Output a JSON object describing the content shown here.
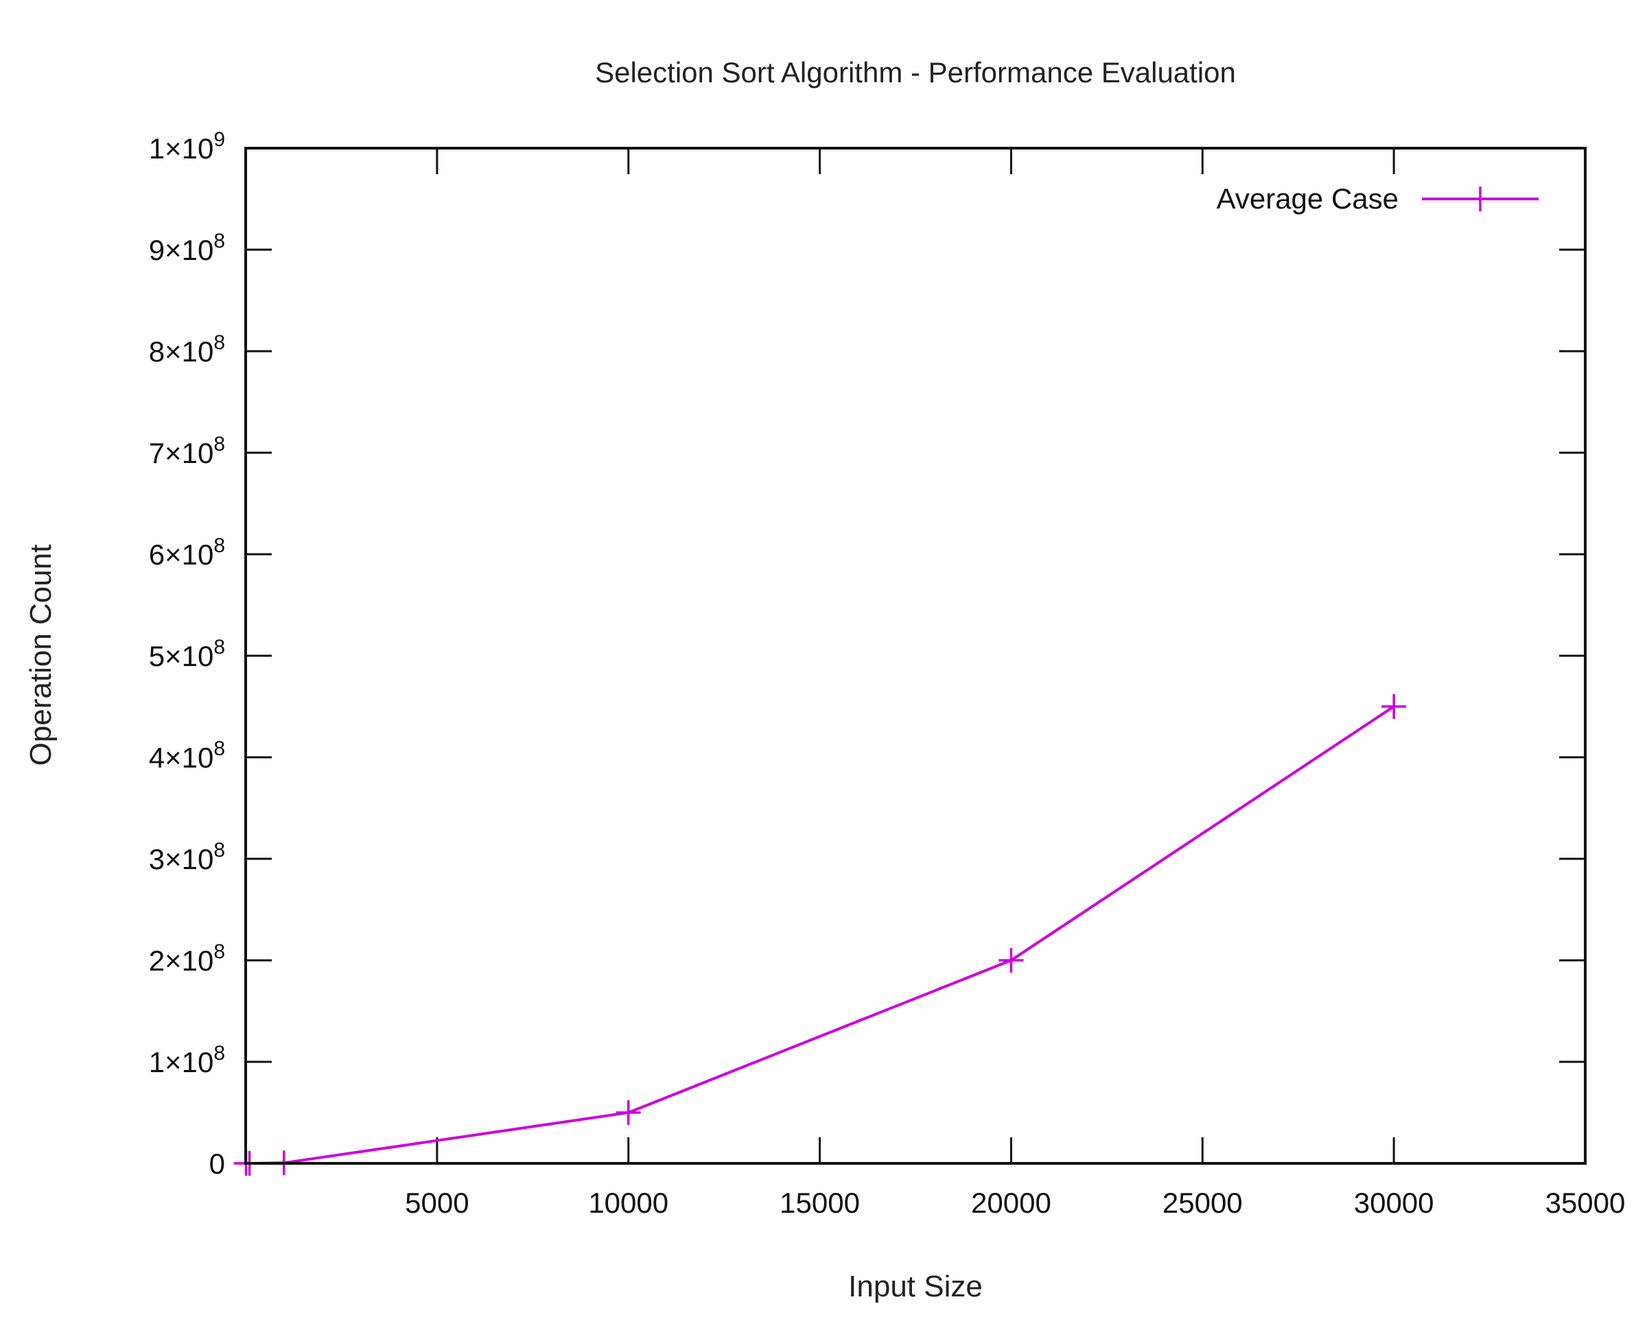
{
  "chart_data": {
    "type": "line",
    "title": "Selection Sort Algorithm - Performance Evaluation",
    "xlabel": "Input Size",
    "ylabel": "Operation Count",
    "xlim": [
      0,
      35000
    ],
    "ylim": [
      0,
      1000000000
    ],
    "x_ticks": [
      {
        "value": 5000,
        "label": "5000"
      },
      {
        "value": 10000,
        "label": "10000"
      },
      {
        "value": 15000,
        "label": "15000"
      },
      {
        "value": 20000,
        "label": "20000"
      },
      {
        "value": 25000,
        "label": "25000"
      },
      {
        "value": 30000,
        "label": "30000"
      },
      {
        "value": 35000,
        "label": "35000"
      }
    ],
    "y_ticks": [
      {
        "value": 0,
        "mantissa": "0",
        "exponent": ""
      },
      {
        "value": 100000000,
        "mantissa": "1×10",
        "exponent": "8"
      },
      {
        "value": 200000000,
        "mantissa": "2×10",
        "exponent": "8"
      },
      {
        "value": 300000000,
        "mantissa": "3×10",
        "exponent": "8"
      },
      {
        "value": 400000000,
        "mantissa": "4×10",
        "exponent": "8"
      },
      {
        "value": 500000000,
        "mantissa": "5×10",
        "exponent": "8"
      },
      {
        "value": 600000000,
        "mantissa": "6×10",
        "exponent": "8"
      },
      {
        "value": 700000000,
        "mantissa": "7×10",
        "exponent": "8"
      },
      {
        "value": 800000000,
        "mantissa": "8×10",
        "exponent": "8"
      },
      {
        "value": 900000000,
        "mantissa": "9×10",
        "exponent": "8"
      },
      {
        "value": 1000000000,
        "mantissa": "1×10",
        "exponent": "9"
      }
    ],
    "grid": false,
    "legend_position": "top-right",
    "series": [
      {
        "name": "Average Case",
        "color": "#cc00dd",
        "marker": "plus",
        "x": [
          10,
          100,
          1000,
          10000,
          20000,
          30000
        ],
        "y": [
          50,
          5000,
          500000,
          50000000,
          200000000,
          450000000
        ]
      }
    ]
  }
}
